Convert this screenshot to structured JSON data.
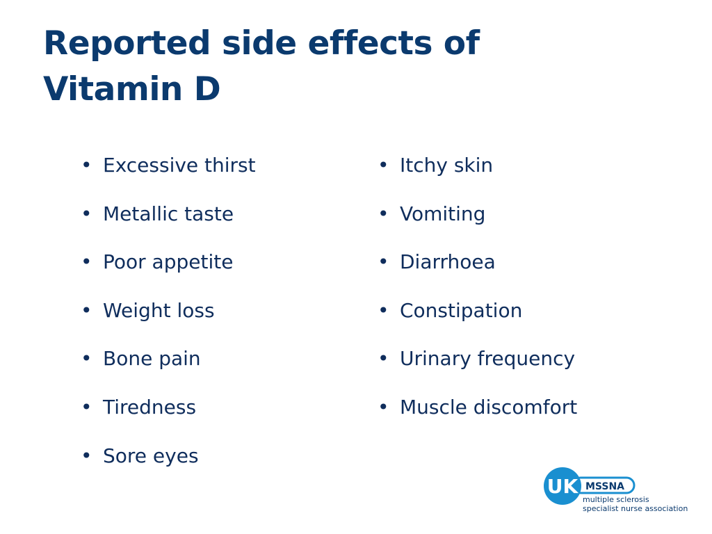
{
  "header": {
    "title": "Reported side effects of Vitamin D"
  },
  "lists": [
    {
      "items": [
        "Excessive thirst",
        "Metallic taste",
        "Poor appetite",
        "Weight loss",
        "Bone pain",
        "Tiredness",
        "Sore eyes"
      ]
    },
    {
      "items": [
        "Itchy skin",
        "Vomiting",
        "Diarrhoea",
        "Constipation",
        "Urinary frequency",
        "Muscle discomfort"
      ]
    }
  ],
  "logo": {
    "badge": "UK",
    "acronym": "MSSNA",
    "line1": "multiple sclerosis",
    "line2": "specialist nurse association"
  }
}
